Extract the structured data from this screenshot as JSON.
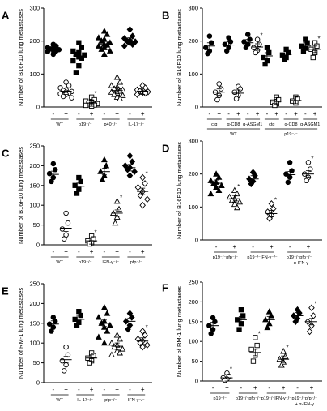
{
  "figure": {
    "chart_data": [
      {
        "panel": "A",
        "type": "scatter",
        "ylabel": "Number of B16F10 lung metastases",
        "ylim": [
          0,
          300
        ],
        "yticks": [
          0,
          100,
          200,
          300
        ],
        "marks": [
          "-",
          "+",
          "-",
          "+",
          "-",
          "+",
          "-",
          "+"
        ],
        "groups": [
          "WT",
          "p19⁻/⁻",
          "p40⁻/⁻",
          "IL-17⁻/⁻"
        ],
        "series": [
          {
            "shape": "circle",
            "filled": true,
            "mean": 175,
            "values": [
              190,
              185,
              180,
              178,
              176,
              174,
              172,
              170,
              168,
              160
            ]
          },
          {
            "shape": "circle",
            "filled": false,
            "mean": 48,
            "values": [
              75,
              65,
              58,
              52,
              50,
              47,
              45,
              42,
              40,
              38,
              32,
              28
            ]
          },
          {
            "shape": "square",
            "filled": true,
            "mean": 155,
            "values": [
              195,
              180,
              170,
              165,
              160,
              158,
              152,
              148,
              140,
              125,
              105
            ]
          },
          {
            "shape": "square",
            "filled": false,
            "mean": 12,
            "values": [
              30,
              22,
              18,
              14,
              12,
              10,
              8,
              6,
              5,
              3
            ],
            "star": true
          },
          {
            "shape": "triangle",
            "filled": true,
            "mean": 190,
            "values": [
              230,
              220,
              210,
              205,
              200,
              195,
              190,
              188,
              185,
              180,
              175,
              170,
              160
            ]
          },
          {
            "shape": "triangle",
            "filled": false,
            "mean": 50,
            "values": [
              90,
              75,
              65,
              60,
              55,
              52,
              50,
              48,
              45,
              42,
              38,
              35,
              30,
              25
            ]
          },
          {
            "shape": "diamond",
            "filled": true,
            "mean": 200,
            "values": [
              235,
              215,
              208,
              202,
              200,
              198,
              195,
              190,
              185
            ]
          },
          {
            "shape": "diamond",
            "filled": false,
            "mean": 48,
            "values": [
              65,
              58,
              52,
              50,
              48,
              46,
              44,
              42,
              38
            ]
          }
        ]
      },
      {
        "panel": "B",
        "type": "scatter",
        "ylabel": "Number of B16F10 lung metastases",
        "ylim": [
          0,
          300
        ],
        "yticks": [
          0,
          100,
          200,
          300
        ],
        "marks": [
          "-",
          "+",
          "-",
          "+",
          "-",
          "+",
          "-",
          "+",
          "-",
          "+",
          "-",
          "+"
        ],
        "subgroups": [
          "ctg",
          "α-CD8",
          "α-ASGM1",
          "ctg",
          "α-CD8",
          "α-ASGM1"
        ],
        "groups": [
          "WT",
          "p19⁻/⁻"
        ],
        "series": [
          {
            "shape": "circle",
            "filled": true,
            "mean": 185,
            "values": [
              215,
              195,
              180,
              170,
              162
            ]
          },
          {
            "shape": "circle",
            "filled": false,
            "mean": 45,
            "values": [
              70,
              55,
              45,
              35,
              22
            ]
          },
          {
            "shape": "circle",
            "filled": true,
            "mean": 188,
            "values": [
              210,
              198,
              190,
              180,
              170
            ]
          },
          {
            "shape": "circle",
            "filled": false,
            "mean": 42,
            "values": [
              62,
              55,
              45,
              35,
              25
            ]
          },
          {
            "shape": "circle",
            "filled": true,
            "mean": 195,
            "values": [
              220,
              205,
              198,
              190,
              180
            ]
          },
          {
            "shape": "circle",
            "filled": false,
            "mean": 182,
            "values": [
              205,
              190,
              180,
              172,
              165
            ],
            "star": true
          },
          {
            "shape": "square",
            "filled": true,
            "mean": 155,
            "values": [
              180,
              165,
              150,
              140,
              130
            ]
          },
          {
            "shape": "square",
            "filled": false,
            "mean": 18,
            "values": [
              30,
              22,
              15,
              10,
              5
            ]
          },
          {
            "shape": "square",
            "filled": true,
            "mean": 160,
            "values": [
              175,
              165,
              158,
              150,
              145
            ]
          },
          {
            "shape": "square",
            "filled": false,
            "mean": 20,
            "values": [
              30,
              25,
              18,
              12
            ]
          },
          {
            "shape": "square",
            "filled": true,
            "mean": 185,
            "values": [
              205,
              195,
              185,
              178,
              170
            ]
          },
          {
            "shape": "square",
            "filled": false,
            "mean": 175,
            "values": [
              195,
              185,
              175,
              165,
              150
            ],
            "star": true
          }
        ]
      },
      {
        "panel": "C",
        "type": "scatter",
        "ylabel": "Number of B16F10 lung metastases",
        "ylim": [
          0,
          250
        ],
        "yticks": [
          0,
          50,
          100,
          150,
          200,
          250
        ],
        "marks": [
          "-",
          "+",
          "-",
          "+",
          "-",
          "+",
          "-",
          "+"
        ],
        "groups": [
          "WT",
          "p19⁻/⁻",
          "IFN-γ⁻/⁻",
          "pfp⁻/⁻"
        ],
        "series": [
          {
            "shape": "circle",
            "filled": true,
            "mean": 178,
            "values": [
              205,
              190,
              180,
              170,
              160
            ]
          },
          {
            "shape": "circle",
            "filled": false,
            "mean": 42,
            "values": [
              80,
              55,
              40,
              25,
              15
            ]
          },
          {
            "shape": "square",
            "filled": true,
            "mean": 148,
            "values": [
              170,
              160,
              150,
              140,
              130
            ]
          },
          {
            "shape": "square",
            "filled": false,
            "mean": 10,
            "values": [
              22,
              15,
              10,
              5,
              2
            ],
            "star": true
          },
          {
            "shape": "triangle",
            "filled": true,
            "mean": 185,
            "values": [
              215,
              200,
              185,
              175,
              165
            ]
          },
          {
            "shape": "triangle",
            "filled": false,
            "mean": 80,
            "values": [
              110,
              90,
              80,
              70,
              55
            ],
            "star": true
          },
          {
            "shape": "diamond",
            "filled": true,
            "mean": 195,
            "values": [
              225,
              210,
              200,
              195,
              190,
              185,
              175
            ]
          },
          {
            "shape": "diamond",
            "filled": false,
            "mean": 135,
            "values": [
              170,
              155,
              145,
              135,
              125,
              115,
              100
            ],
            "star": true
          }
        ]
      },
      {
        "panel": "D",
        "type": "scatter",
        "ylabel": "Number of B16F10 lung metastases",
        "ylim": [
          0,
          300
        ],
        "yticks": [
          0,
          100,
          200,
          300
        ],
        "marks": [
          "-",
          "+",
          "-",
          "+",
          "-",
          "+"
        ],
        "groups": [
          "p19⁻/⁻pfp⁻/⁻",
          "p19⁻/⁻IFN-γ⁻/⁻",
          "p19⁻/⁻pfp⁻/⁻ + α-IFN-γ"
        ],
        "series": [
          {
            "shape": "triangle",
            "filled": true,
            "mean": 172,
            "values": [
              200,
              190,
              180,
              175,
              170,
              165,
              160,
              150,
              140
            ]
          },
          {
            "shape": "triangle",
            "filled": false,
            "mean": 125,
            "values": [
              150,
              140,
              130,
              125,
              120,
              115,
              108,
              98
            ],
            "star": true
          },
          {
            "shape": "diamond",
            "filled": true,
            "mean": 185,
            "values": [
              205,
              195,
              185,
              178,
              170
            ]
          },
          {
            "shape": "diamond",
            "filled": false,
            "mean": 80,
            "values": [
              110,
              95,
              85,
              75,
              65
            ],
            "star": true
          },
          {
            "shape": "circle",
            "filled": true,
            "mean": 198,
            "values": [
              235,
              210,
              200,
              190,
              175
            ]
          },
          {
            "shape": "circle",
            "filled": false,
            "mean": 200,
            "values": [
              235,
              215,
              200,
              190,
              180
            ],
            "star": true
          }
        ]
      },
      {
        "panel": "E",
        "type": "scatter",
        "ylabel": "Number of RM-1 lung metastases",
        "ylim": [
          0,
          250
        ],
        "yticks": [
          0,
          50,
          100,
          150,
          200,
          250
        ],
        "marks": [
          "-",
          "+",
          "-",
          "+",
          "-",
          "+",
          "-",
          "+"
        ],
        "groups": [
          "WT",
          "IL-17⁻/⁻",
          "pfp⁻/⁻",
          "IFN-γ⁻/⁻"
        ],
        "series": [
          {
            "shape": "circle",
            "filled": true,
            "mean": 148,
            "values": [
              165,
              155,
              148,
              140,
              130
            ]
          },
          {
            "shape": "circle",
            "filled": false,
            "mean": 58,
            "values": [
              90,
              70,
              55,
              45,
              30
            ]
          },
          {
            "shape": "square",
            "filled": true,
            "mean": 160,
            "values": [
              180,
              170,
              160,
              152,
              145
            ]
          },
          {
            "shape": "square",
            "filled": false,
            "mean": 62,
            "values": [
              75,
              68,
              62,
              55,
              50
            ]
          },
          {
            "shape": "triangle",
            "filled": true,
            "mean": 150,
            "values": [
              190,
              175,
              165,
              155,
              150,
              145,
              140,
              130,
              115,
              100
            ]
          },
          {
            "shape": "triangle",
            "filled": false,
            "mean": 92,
            "values": [
              120,
              110,
              100,
              95,
              90,
              85,
              80,
              75,
              70
            ]
          },
          {
            "shape": "diamond",
            "filled": true,
            "mean": 155,
            "values": [
              175,
              165,
              155,
              145,
              135
            ]
          },
          {
            "shape": "diamond",
            "filled": false,
            "mean": 105,
            "values": [
              130,
              120,
              110,
              105,
              100,
              95,
              90
            ],
            "star": true
          }
        ]
      },
      {
        "panel": "F",
        "type": "scatter",
        "ylabel": "Number of RM-1 lung metastases",
        "ylim": [
          0,
          250
        ],
        "yticks": [
          0,
          50,
          100,
          150,
          200,
          250
        ],
        "marks": [
          "-",
          "+",
          "-",
          "+",
          "-",
          "+",
          "-",
          "+"
        ],
        "groups": [
          "p19⁻/⁻",
          "p19⁻/⁻pfp⁻/⁻",
          "p19⁻/⁻IFN-γ⁻/⁻",
          "p19⁻/⁻pfp⁻/⁻ + α-IFN-γ"
        ],
        "series": [
          {
            "shape": "circle",
            "filled": true,
            "mean": 140,
            "values": [
              160,
              150,
              140,
              130,
              120
            ]
          },
          {
            "shape": "circle",
            "filled": false,
            "mean": 8,
            "values": [
              20,
              12,
              8,
              5,
              2
            ],
            "star": true
          },
          {
            "shape": "square",
            "filled": true,
            "mean": 155,
            "values": [
              180,
              165,
              155,
              145,
              130
            ]
          },
          {
            "shape": "square",
            "filled": false,
            "mean": 72,
            "values": [
              110,
              90,
              80,
              65,
              50
            ],
            "star": true
          },
          {
            "shape": "triangle",
            "filled": true,
            "mean": 155,
            "values": [
              175,
              165,
              155,
              145,
              135
            ]
          },
          {
            "shape": "triangle",
            "filled": false,
            "mean": 55,
            "values": [
              75,
              62,
              55,
              48,
              40
            ],
            "star": true
          },
          {
            "shape": "diamond",
            "filled": true,
            "mean": 165,
            "values": [
              180,
              172,
              165,
              158,
              150
            ]
          },
          {
            "shape": "diamond",
            "filled": false,
            "mean": 150,
            "values": [
              185,
              165,
              150,
              140,
              125
            ],
            "star": true
          }
        ]
      }
    ]
  }
}
